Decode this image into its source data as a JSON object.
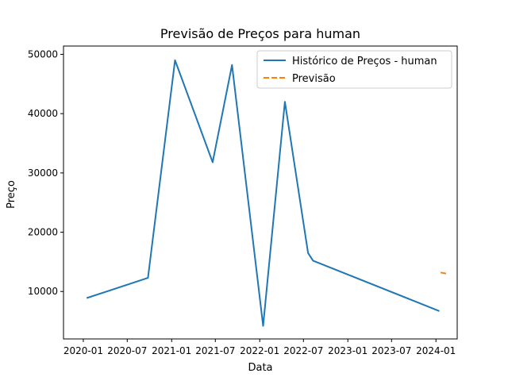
{
  "chart_data": {
    "type": "line",
    "title": "Previsão de Preços para human",
    "xlabel": "Data",
    "ylabel": "Preço",
    "x_ticks": [
      "2020-01",
      "2020-07",
      "2021-01",
      "2021-07",
      "2022-01",
      "2022-07",
      "2023-01",
      "2023-07",
      "2024-01"
    ],
    "y_ticks": [
      10000,
      20000,
      30000,
      40000,
      50000
    ],
    "y_tick_labels": [
      "10000",
      "20000",
      "30000",
      "40000",
      "50000"
    ],
    "xlim": [
      "2019-10-11",
      "2024-03-29"
    ],
    "ylim": [
      2000,
      51400
    ],
    "grid": false,
    "legend_position": "top-right",
    "series": [
      {
        "name": "Histórico de Preços - human",
        "color": "#1f77b4",
        "style": "solid",
        "x": [
          "2020-01-15",
          "2020-09-25",
          "2021-01-15",
          "2021-06-20",
          "2021-09-08",
          "2022-01-15",
          "2022-04-15",
          "2022-07-20",
          "2022-08-10",
          "2024-01-15"
        ],
        "y": [
          8900,
          12300,
          49000,
          31800,
          48200,
          4200,
          42000,
          16500,
          15200,
          6700
        ]
      },
      {
        "name": "Previsão",
        "color": "#ff7f0e",
        "style": "dashed",
        "x": [
          "2024-01-20",
          "2024-02-15"
        ],
        "y": [
          13200,
          13000
        ]
      }
    ]
  }
}
